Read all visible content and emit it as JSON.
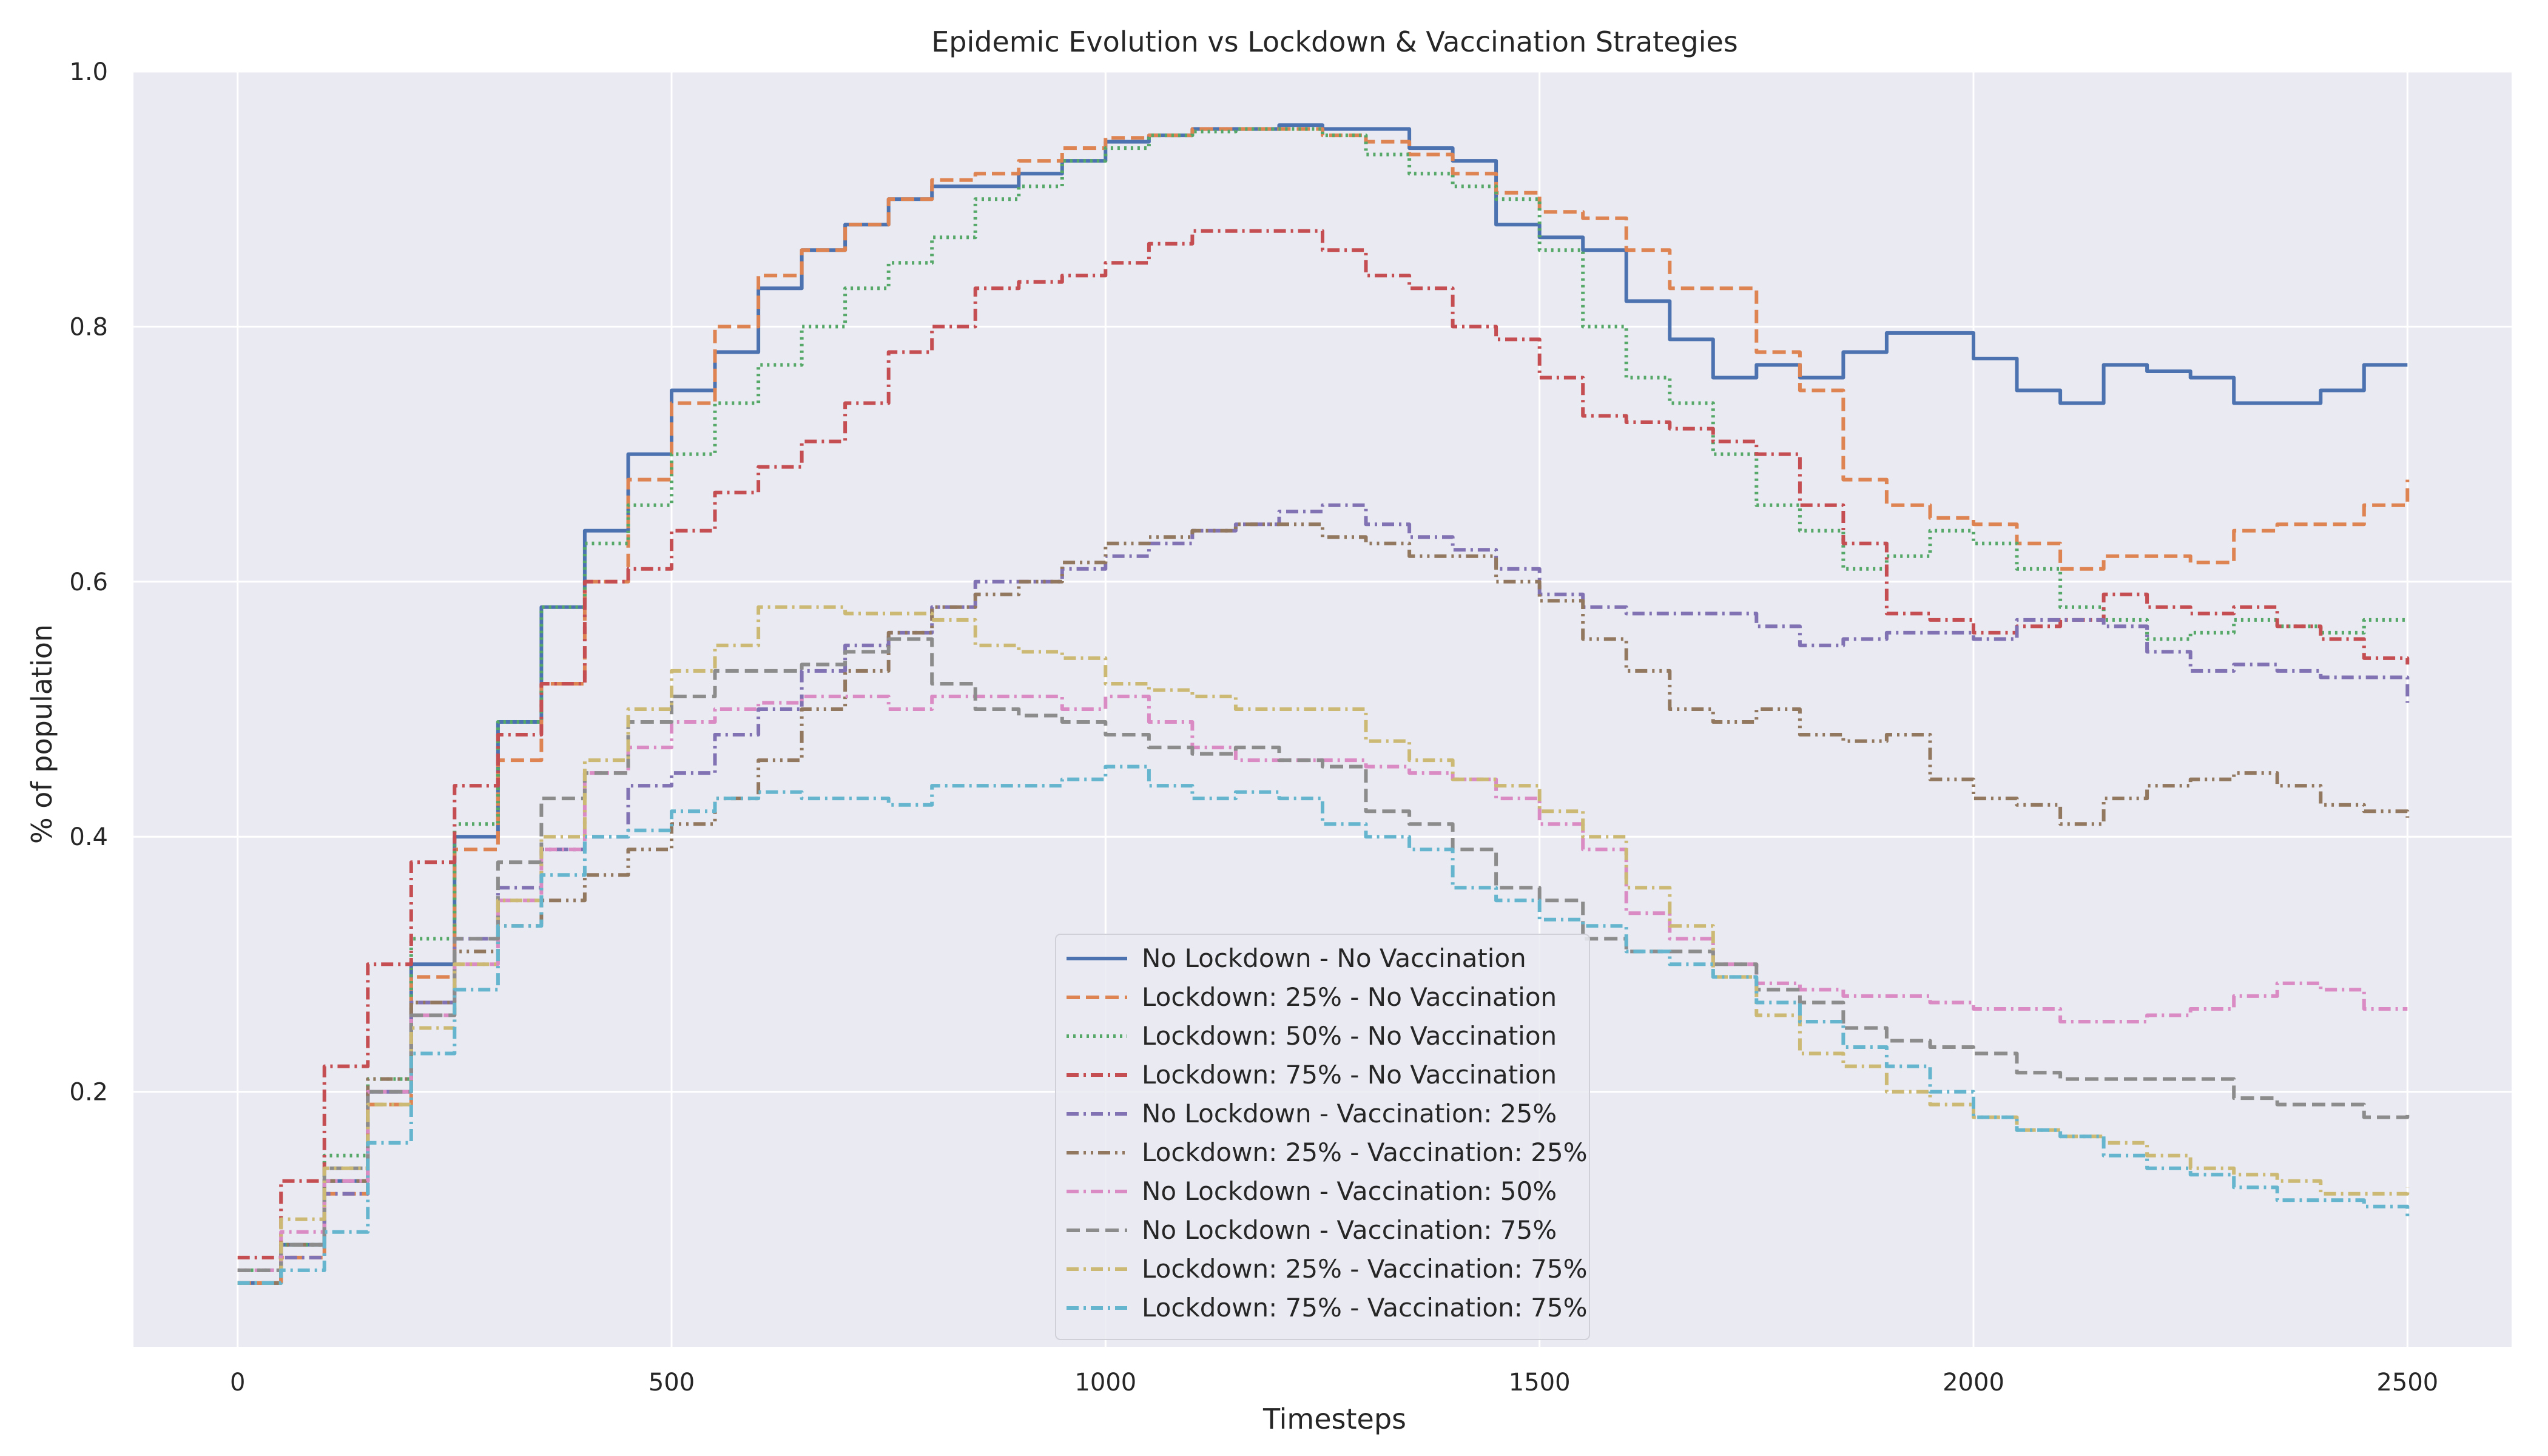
{
  "chart_data": {
    "type": "line",
    "title": "Epidemic Evolution vs Lockdown & Vaccination Strategies",
    "xlabel": "Timesteps",
    "ylabel": "% of population",
    "xlim": [
      -120,
      2620
    ],
    "ylim": [
      0.0,
      1.0
    ],
    "x_ticks": [
      0,
      500,
      1000,
      1500,
      2000,
      2500
    ],
    "y_ticks": [
      0.2,
      0.4,
      0.6,
      0.8,
      1.0
    ],
    "grid": true,
    "legend_position": "lower-center",
    "background_color": "#eaeaf2",
    "grid_color": "#ffffff",
    "x": [
      0,
      50,
      100,
      150,
      200,
      250,
      300,
      350,
      400,
      450,
      500,
      550,
      600,
      650,
      700,
      750,
      800,
      850,
      900,
      950,
      1000,
      1050,
      1100,
      1150,
      1200,
      1250,
      1300,
      1350,
      1400,
      1450,
      1500,
      1550,
      1600,
      1650,
      1700,
      1750,
      1800,
      1850,
      1900,
      1950,
      2000,
      2050,
      2100,
      2150,
      2200,
      2250,
      2300,
      2350,
      2400,
      2450,
      2500
    ],
    "series": [
      {
        "name": "No Lockdown - No Vaccination",
        "color": "#4c72b0",
        "dash": "solid",
        "values": [
          0.05,
          0.08,
          0.13,
          0.2,
          0.3,
          0.4,
          0.49,
          0.58,
          0.64,
          0.7,
          0.75,
          0.78,
          0.83,
          0.86,
          0.88,
          0.9,
          0.91,
          0.91,
          0.92,
          0.93,
          0.945,
          0.95,
          0.955,
          0.955,
          0.958,
          0.955,
          0.955,
          0.94,
          0.93,
          0.88,
          0.87,
          0.86,
          0.82,
          0.79,
          0.76,
          0.77,
          0.76,
          0.78,
          0.795,
          0.795,
          0.775,
          0.75,
          0.74,
          0.77,
          0.765,
          0.76,
          0.74,
          0.74,
          0.75,
          0.77,
          0.77
        ]
      },
      {
        "name": "Lockdown: 25% - No Vaccination",
        "color": "#dd8452",
        "dash": "dashed",
        "values": [
          0.05,
          0.07,
          0.12,
          0.19,
          0.29,
          0.39,
          0.46,
          0.52,
          0.6,
          0.68,
          0.74,
          0.8,
          0.84,
          0.86,
          0.88,
          0.9,
          0.915,
          0.92,
          0.93,
          0.94,
          0.948,
          0.95,
          0.955,
          0.955,
          0.955,
          0.95,
          0.945,
          0.935,
          0.92,
          0.905,
          0.89,
          0.885,
          0.86,
          0.83,
          0.83,
          0.78,
          0.75,
          0.68,
          0.66,
          0.65,
          0.645,
          0.63,
          0.61,
          0.62,
          0.62,
          0.615,
          0.64,
          0.645,
          0.645,
          0.66,
          0.68
        ]
      },
      {
        "name": "Lockdown: 50% - No Vaccination",
        "color": "#55a868",
        "dash": "dotted",
        "values": [
          0.06,
          0.08,
          0.15,
          0.21,
          0.32,
          0.41,
          0.49,
          0.58,
          0.63,
          0.66,
          0.7,
          0.74,
          0.77,
          0.8,
          0.83,
          0.85,
          0.87,
          0.9,
          0.91,
          0.93,
          0.94,
          0.95,
          0.953,
          0.955,
          0.955,
          0.95,
          0.935,
          0.92,
          0.91,
          0.9,
          0.86,
          0.8,
          0.76,
          0.74,
          0.7,
          0.66,
          0.64,
          0.61,
          0.62,
          0.64,
          0.63,
          0.61,
          0.58,
          0.57,
          0.555,
          0.56,
          0.57,
          0.565,
          0.56,
          0.57,
          0.57
        ]
      },
      {
        "name": "Lockdown: 75% - No Vaccination",
        "color": "#c44e52",
        "dash": "dashdot",
        "values": [
          0.07,
          0.13,
          0.22,
          0.3,
          0.38,
          0.44,
          0.48,
          0.52,
          0.6,
          0.61,
          0.64,
          0.67,
          0.69,
          0.71,
          0.74,
          0.78,
          0.8,
          0.83,
          0.835,
          0.84,
          0.85,
          0.865,
          0.875,
          0.875,
          0.875,
          0.86,
          0.84,
          0.83,
          0.8,
          0.79,
          0.76,
          0.73,
          0.725,
          0.72,
          0.71,
          0.7,
          0.66,
          0.63,
          0.575,
          0.57,
          0.56,
          0.565,
          0.57,
          0.59,
          0.58,
          0.575,
          0.58,
          0.565,
          0.555,
          0.54,
          0.535
        ]
      },
      {
        "name": "No Lockdown - Vaccination: 25%",
        "color": "#8172b3",
        "dash": "dashdot",
        "values": [
          0.05,
          0.07,
          0.12,
          0.2,
          0.27,
          0.32,
          0.36,
          0.39,
          0.4,
          0.44,
          0.45,
          0.48,
          0.5,
          0.53,
          0.55,
          0.56,
          0.58,
          0.6,
          0.6,
          0.61,
          0.62,
          0.63,
          0.64,
          0.645,
          0.655,
          0.66,
          0.645,
          0.635,
          0.625,
          0.61,
          0.59,
          0.58,
          0.575,
          0.575,
          0.575,
          0.565,
          0.55,
          0.555,
          0.56,
          0.56,
          0.555,
          0.57,
          0.57,
          0.565,
          0.545,
          0.53,
          0.535,
          0.53,
          0.525,
          0.525,
          0.505
        ]
      },
      {
        "name": "Lockdown: 25% - Vaccination: 25%",
        "color": "#937860",
        "dash": "dashdotdot",
        "values": [
          0.05,
          0.08,
          0.13,
          0.21,
          0.27,
          0.31,
          0.33,
          0.35,
          0.37,
          0.39,
          0.41,
          0.43,
          0.46,
          0.5,
          0.53,
          0.56,
          0.58,
          0.59,
          0.6,
          0.615,
          0.63,
          0.635,
          0.64,
          0.645,
          0.645,
          0.635,
          0.63,
          0.62,
          0.62,
          0.6,
          0.585,
          0.555,
          0.53,
          0.5,
          0.49,
          0.5,
          0.48,
          0.475,
          0.48,
          0.445,
          0.43,
          0.425,
          0.41,
          0.43,
          0.44,
          0.445,
          0.45,
          0.44,
          0.425,
          0.42,
          0.415
        ]
      },
      {
        "name": "No Lockdown - Vaccination: 50%",
        "color": "#da8bc3",
        "dash": "dashdot",
        "values": [
          0.06,
          0.09,
          0.13,
          0.2,
          0.26,
          0.3,
          0.35,
          0.39,
          0.45,
          0.47,
          0.49,
          0.5,
          0.505,
          0.51,
          0.51,
          0.5,
          0.51,
          0.51,
          0.51,
          0.5,
          0.51,
          0.49,
          0.47,
          0.46,
          0.46,
          0.46,
          0.455,
          0.45,
          0.445,
          0.43,
          0.41,
          0.39,
          0.34,
          0.32,
          0.3,
          0.285,
          0.28,
          0.275,
          0.275,
          0.27,
          0.265,
          0.265,
          0.255,
          0.255,
          0.26,
          0.265,
          0.275,
          0.285,
          0.28,
          0.265,
          0.265
        ]
      },
      {
        "name": "No Lockdown  - Vaccination: 75%",
        "color": "#8c8c8c",
        "dash": "dashed",
        "values": [
          0.06,
          0.08,
          0.14,
          0.2,
          0.26,
          0.32,
          0.38,
          0.43,
          0.45,
          0.49,
          0.51,
          0.53,
          0.53,
          0.535,
          0.545,
          0.555,
          0.52,
          0.5,
          0.495,
          0.49,
          0.48,
          0.47,
          0.465,
          0.47,
          0.46,
          0.455,
          0.42,
          0.41,
          0.39,
          0.36,
          0.35,
          0.32,
          0.31,
          0.31,
          0.3,
          0.28,
          0.27,
          0.25,
          0.24,
          0.235,
          0.23,
          0.215,
          0.21,
          0.21,
          0.21,
          0.21,
          0.195,
          0.19,
          0.19,
          0.18,
          0.185
        ]
      },
      {
        "name": "Lockdown: 25% - Vaccination: 75%",
        "color": "#ccb974",
        "dash": "dashdot",
        "values": [
          0.05,
          0.1,
          0.14,
          0.19,
          0.25,
          0.3,
          0.35,
          0.4,
          0.46,
          0.5,
          0.53,
          0.55,
          0.58,
          0.58,
          0.575,
          0.575,
          0.57,
          0.55,
          0.545,
          0.54,
          0.52,
          0.515,
          0.51,
          0.5,
          0.5,
          0.5,
          0.475,
          0.46,
          0.445,
          0.44,
          0.42,
          0.4,
          0.36,
          0.33,
          0.29,
          0.26,
          0.23,
          0.22,
          0.2,
          0.19,
          0.18,
          0.17,
          0.165,
          0.16,
          0.15,
          0.14,
          0.135,
          0.13,
          0.12,
          0.12,
          0.125
        ]
      },
      {
        "name": "Lockdown: 75% - Vaccination: 75%",
        "color": "#64b5cd",
        "dash": "dashdot",
        "values": [
          0.05,
          0.06,
          0.09,
          0.16,
          0.23,
          0.28,
          0.33,
          0.37,
          0.4,
          0.405,
          0.42,
          0.43,
          0.435,
          0.43,
          0.43,
          0.425,
          0.44,
          0.44,
          0.44,
          0.445,
          0.455,
          0.44,
          0.43,
          0.435,
          0.43,
          0.41,
          0.4,
          0.39,
          0.36,
          0.35,
          0.335,
          0.33,
          0.31,
          0.3,
          0.29,
          0.27,
          0.255,
          0.235,
          0.22,
          0.2,
          0.18,
          0.17,
          0.165,
          0.15,
          0.14,
          0.135,
          0.125,
          0.115,
          0.115,
          0.11,
          0.1
        ]
      }
    ]
  }
}
